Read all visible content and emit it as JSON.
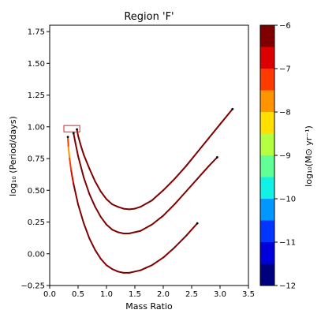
{
  "chart_data": {
    "type": "line",
    "title": "Region 'F'",
    "xlabel": "Mass Ratio",
    "ylabel": "log₁₀ (Period/days)",
    "xlim": [
      0.0,
      3.5
    ],
    "ylim": [
      -0.25,
      1.8
    ],
    "xticks": [
      0.0,
      0.5,
      1.0,
      1.5,
      2.0,
      2.5,
      3.0,
      3.5
    ],
    "xtick_labels": [
      "0.0",
      "0.5",
      "1.0",
      "1.5",
      "2.0",
      "2.5",
      "3.0",
      "3.5"
    ],
    "yticks": [
      -0.25,
      0.0,
      0.25,
      0.5,
      0.75,
      1.0,
      1.25,
      1.5,
      1.75
    ],
    "ytick_labels": [
      "−0.25",
      "0.00",
      "0.25",
      "0.50",
      "0.75",
      "1.00",
      "1.25",
      "1.50",
      "1.75"
    ],
    "colorbar": {
      "label": "log₁₀(M⊙ yr⁻¹)",
      "range": [
        -12,
        -6
      ],
      "tick_values": [
        -12,
        -11,
        -10,
        -9,
        -8,
        -7,
        -6
      ],
      "tick_labels": [
        "−12",
        "−11",
        "−10",
        "−9",
        "−8",
        "−7",
        "−6"
      ],
      "colors": [
        "#00007f",
        "#0000db",
        "#0036ff",
        "#0098ff",
        "#11f1e6",
        "#61ff96",
        "#b5ff42",
        "#ffe000",
        "#ff9300",
        "#ff3a00",
        "#dc0000",
        "#800000"
      ]
    },
    "highlight_box": {
      "x": [
        0.25,
        0.53
      ],
      "y": [
        0.96,
        1.01
      ],
      "color": "#d62728"
    },
    "series": [
      {
        "x": [
          0.32,
          0.33,
          0.35,
          0.38,
          0.42,
          0.5,
          0.6,
          0.7,
          0.8,
          0.9,
          1.0,
          1.1,
          1.2,
          1.3,
          1.4,
          1.5,
          1.6,
          1.7,
          1.8,
          1.9,
          2.0,
          2.2,
          2.4,
          2.6
        ],
        "y": [
          0.92,
          0.84,
          0.75,
          0.65,
          0.55,
          0.39,
          0.24,
          0.12,
          0.03,
          -0.04,
          -0.09,
          -0.12,
          -0.14,
          -0.15,
          -0.15,
          -0.14,
          -0.13,
          -0.11,
          -0.09,
          -0.06,
          -0.03,
          0.05,
          0.14,
          0.24
        ],
        "rate": [
          -7.2,
          -7.5,
          -7.8,
          -7.0,
          -6.5,
          -6.2,
          -6.1,
          -6.1,
          -6.1,
          -6.1,
          -6.1,
          -6.1,
          -6.1,
          -6.1,
          -6.1,
          -6.1,
          -6.1,
          -6.1,
          -6.1,
          -6.1,
          -6.1,
          -6.1,
          -6.1,
          -6.1
        ]
      },
      {
        "x": [
          0.42,
          0.45,
          0.5,
          0.6,
          0.7,
          0.8,
          0.9,
          1.0,
          1.1,
          1.2,
          1.3,
          1.4,
          1.5,
          1.6,
          1.8,
          2.0,
          2.2,
          2.4,
          2.6,
          2.8,
          2.95
        ],
        "y": [
          0.95,
          0.88,
          0.77,
          0.6,
          0.47,
          0.37,
          0.29,
          0.23,
          0.19,
          0.17,
          0.16,
          0.16,
          0.17,
          0.18,
          0.23,
          0.3,
          0.39,
          0.49,
          0.59,
          0.69,
          0.76
        ],
        "rate": [
          -6.3,
          -6.2,
          -6.1,
          -6.1,
          -6.1,
          -6.1,
          -6.1,
          -6.1,
          -6.1,
          -6.1,
          -6.1,
          -6.1,
          -6.1,
          -6.1,
          -6.1,
          -6.1,
          -6.1,
          -6.1,
          -6.1,
          -6.1,
          -6.1
        ]
      },
      {
        "x": [
          0.48,
          0.5,
          0.55,
          0.6,
          0.7,
          0.8,
          0.9,
          1.0,
          1.1,
          1.2,
          1.3,
          1.4,
          1.5,
          1.6,
          1.8,
          2.0,
          2.2,
          2.4,
          2.6,
          2.8,
          3.0,
          3.22
        ],
        "y": [
          0.98,
          0.93,
          0.85,
          0.78,
          0.67,
          0.57,
          0.49,
          0.43,
          0.39,
          0.37,
          0.355,
          0.35,
          0.355,
          0.37,
          0.42,
          0.5,
          0.59,
          0.69,
          0.8,
          0.91,
          1.02,
          1.14
        ],
        "rate": [
          -6.2,
          -6.1,
          -6.1,
          -6.1,
          -6.1,
          -6.1,
          -6.1,
          -6.1,
          -6.1,
          -6.1,
          -6.1,
          -6.1,
          -6.1,
          -6.1,
          -6.1,
          -6.1,
          -6.1,
          -6.1,
          -6.1,
          -6.1,
          -6.1,
          -6.1
        ]
      }
    ]
  }
}
